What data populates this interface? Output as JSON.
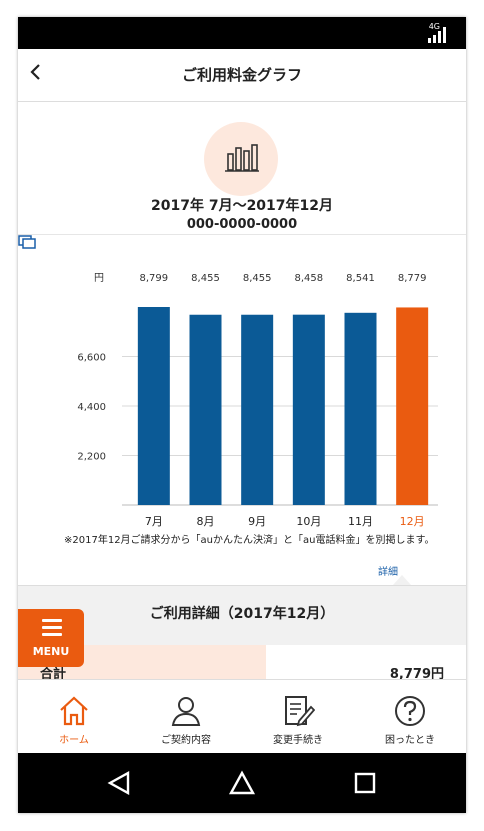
{
  "status": {
    "network": "4G"
  },
  "header": {
    "back_icon": "chevron-left-icon",
    "title": "ご利用料金グラフ"
  },
  "summary": {
    "icon": "bar-chart-icon",
    "period": "2017年 7月〜2017年12月",
    "phone_number": "000-0000-0000"
  },
  "chart_data": {
    "type": "bar",
    "unit_label": "円",
    "categories": [
      "7月",
      "8月",
      "9月",
      "10月",
      "11月",
      "12月"
    ],
    "values": [
      8799,
      8455,
      8455,
      8458,
      8541,
      8779
    ],
    "value_labels": [
      "8,799",
      "8,455",
      "8,455",
      "8,458",
      "8,541",
      "8,779"
    ],
    "yticks": [
      2200,
      4400,
      6600
    ],
    "ytick_labels": [
      "2,200",
      "4,400",
      "6,600"
    ],
    "ylim": [
      0,
      8799
    ],
    "grid": true,
    "bar_color": "#0b5a96",
    "highlight_color": "#ea5b10",
    "highlight_index": 5
  },
  "note": "※2017年12月ご請求分から「auかんたん決済」と「au電話料金」を別掲します。",
  "detail_link": {
    "label": "詳細",
    "icon": "window-copy-icon"
  },
  "detail": {
    "title": "ご利用詳細（2017年12月）",
    "total_label": "合計",
    "total_value": "8,779円"
  },
  "menu": {
    "label": "MENU",
    "icon": "hamburger-icon"
  },
  "tabs": [
    {
      "label": "ホーム",
      "icon": "home-icon",
      "active": true
    },
    {
      "label": "ご契約内容",
      "icon": "person-icon",
      "active": false
    },
    {
      "label": "変更手続き",
      "icon": "edit-document-icon",
      "active": false
    },
    {
      "label": "困ったとき",
      "icon": "help-icon",
      "active": false
    }
  ],
  "navbar": {
    "back": "triangle-back-icon",
    "home": "home-circle-icon",
    "recents": "square-recents-icon"
  },
  "colors": {
    "accent": "#ea5b10",
    "brand_blue": "#0b5a96",
    "link": "#1a5fa8"
  }
}
